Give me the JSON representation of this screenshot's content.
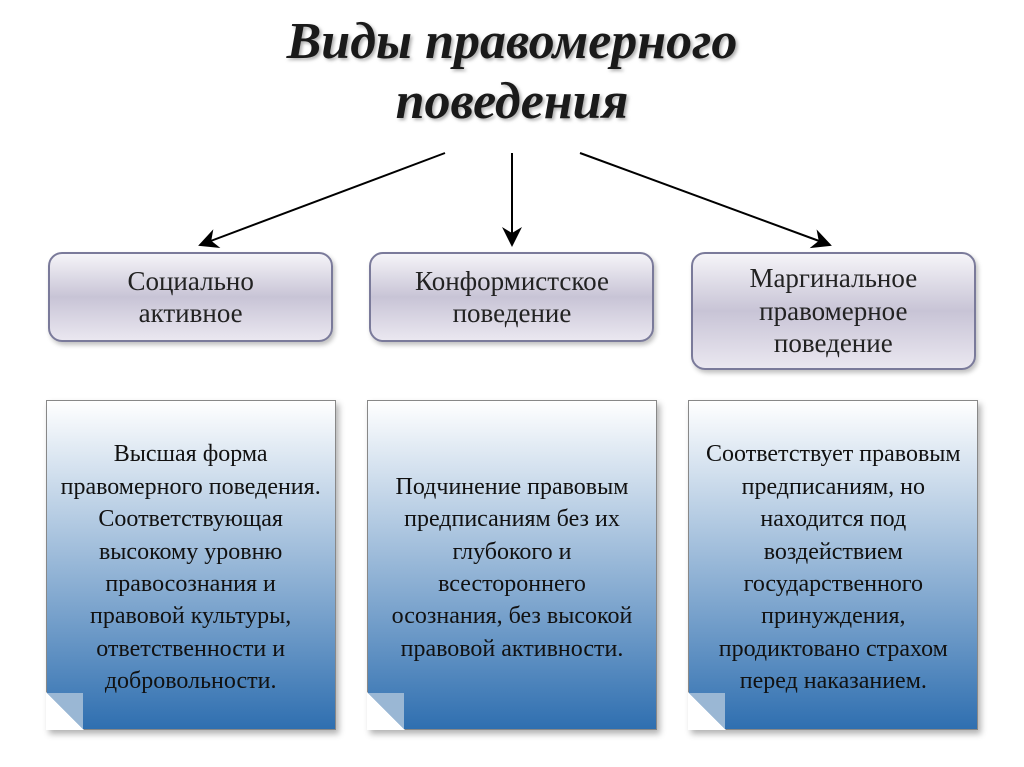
{
  "title": {
    "line1": "Виды правомерного",
    "line2": "поведения",
    "fontsize": 52,
    "color": "#1a1a1a"
  },
  "pill_style": {
    "fontsize": 27,
    "gradient_top": "#f5f4f8",
    "gradient_mid": "#c8c4d6",
    "gradient_bot": "#eae7f0",
    "border_color": "#7a7a9a"
  },
  "desc_style": {
    "fontsize": 24,
    "gradient_top": "#ffffff",
    "gradient_bot": "#2f6fb0",
    "corner_color": "#9ab7d4"
  },
  "arrow_color": "#000000",
  "columns": [
    {
      "pill_text": "Социально\nактивное",
      "pill_height": 90,
      "desc_text": "Высшая форма правомерного поведения. Соответствующая высокому уровню правосознания и правовой культуры, ответственности и добровольности."
    },
    {
      "pill_text": "Конформистское\nповедение",
      "pill_height": 90,
      "desc_text": "Подчинение правовым предписаниям без их глубокого и всестороннего осознания, без высокой правовой активности."
    },
    {
      "pill_text": "Маргинальное\nправомерное\nповедение",
      "pill_height": 118,
      "desc_text": "Соответствует правовым предписаниям, но находится под воздействием государственного принуждения, продиктовано страхом перед наказанием."
    }
  ]
}
